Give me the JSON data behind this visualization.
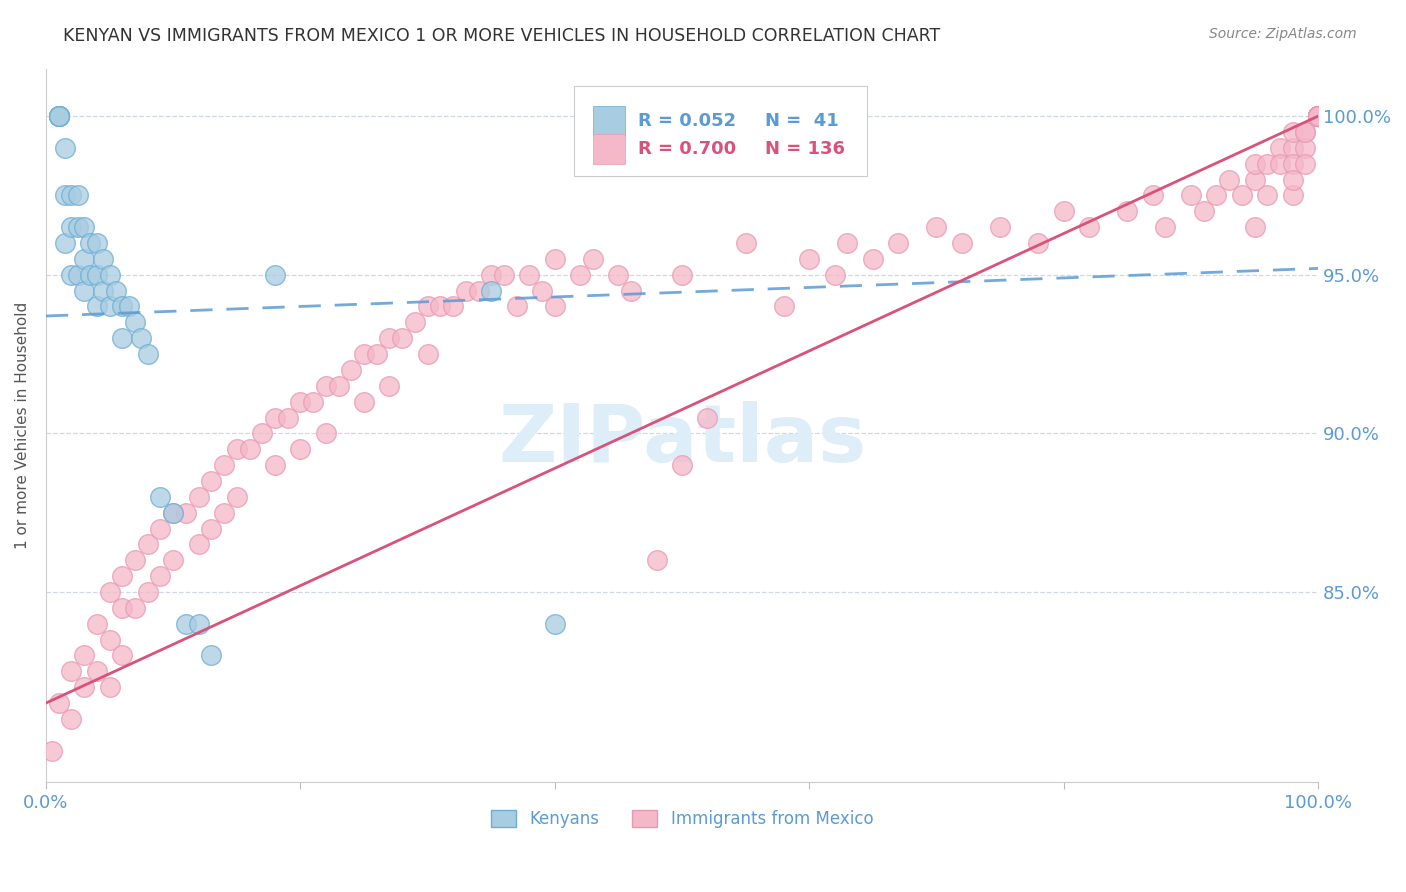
{
  "title": "KENYAN VS IMMIGRANTS FROM MEXICO 1 OR MORE VEHICLES IN HOUSEHOLD CORRELATION CHART",
  "source": "Source: ZipAtlas.com",
  "ylabel": "1 or more Vehicles in Household",
  "xlim": [
    0.0,
    1.0
  ],
  "ylim": [
    0.79,
    1.015
  ],
  "y_ticks": [
    0.85,
    0.9,
    0.95,
    1.0
  ],
  "y_tick_labels": [
    "85.0%",
    "90.0%",
    "95.0%",
    "100.0%"
  ],
  "x_ticks": [
    0.0,
    0.2,
    0.4,
    0.6,
    0.8,
    1.0
  ],
  "x_tick_labels": [
    "0.0%",
    "",
    "",
    "",
    "",
    "100.0%"
  ],
  "legend_R_kenyan": "0.052",
  "legend_N_kenyan": " 41",
  "legend_R_mexico": "0.700",
  "legend_N_mexico": "136",
  "kenyan_color": "#a8cce0",
  "mexico_color": "#f4b8c8",
  "kenyan_edge_color": "#6baed6",
  "mexico_edge_color": "#e899b4",
  "kenyan_trend_color": "#5b9bd5",
  "mexico_trend_color": "#d9527a",
  "axis_color": "#5b9bd5",
  "grid_color": "#d0d8e8",
  "background_color": "#ffffff",
  "watermark_color": "#ddeef8",
  "title_color": "#333333",
  "source_color": "#888888",
  "ylabel_color": "#555555",
  "kenyan_x": [
    0.01,
    0.01,
    0.01,
    0.01,
    0.01,
    0.015,
    0.015,
    0.015,
    0.02,
    0.02,
    0.02,
    0.025,
    0.025,
    0.025,
    0.03,
    0.03,
    0.03,
    0.035,
    0.035,
    0.04,
    0.04,
    0.04,
    0.045,
    0.045,
    0.05,
    0.05,
    0.055,
    0.06,
    0.06,
    0.065,
    0.07,
    0.075,
    0.08,
    0.09,
    0.1,
    0.11,
    0.12,
    0.13,
    0.18,
    0.35,
    0.4
  ],
  "kenyan_y": [
    1.0,
    1.0,
    1.0,
    1.0,
    1.0,
    0.99,
    0.975,
    0.96,
    0.975,
    0.965,
    0.95,
    0.975,
    0.965,
    0.95,
    0.965,
    0.955,
    0.945,
    0.96,
    0.95,
    0.96,
    0.95,
    0.94,
    0.955,
    0.945,
    0.95,
    0.94,
    0.945,
    0.94,
    0.93,
    0.94,
    0.935,
    0.93,
    0.925,
    0.88,
    0.875,
    0.84,
    0.84,
    0.83,
    0.95,
    0.945,
    0.84
  ],
  "mexico_x": [
    0.005,
    0.01,
    0.02,
    0.02,
    0.03,
    0.03,
    0.04,
    0.04,
    0.05,
    0.05,
    0.05,
    0.06,
    0.06,
    0.06,
    0.07,
    0.07,
    0.08,
    0.08,
    0.09,
    0.09,
    0.1,
    0.1,
    0.11,
    0.12,
    0.12,
    0.13,
    0.13,
    0.14,
    0.14,
    0.15,
    0.15,
    0.16,
    0.17,
    0.18,
    0.18,
    0.19,
    0.2,
    0.2,
    0.21,
    0.22,
    0.22,
    0.23,
    0.24,
    0.25,
    0.25,
    0.26,
    0.27,
    0.27,
    0.28,
    0.29,
    0.3,
    0.3,
    0.31,
    0.32,
    0.33,
    0.34,
    0.35,
    0.36,
    0.37,
    0.38,
    0.39,
    0.4,
    0.4,
    0.42,
    0.43,
    0.45,
    0.46,
    0.48,
    0.5,
    0.5,
    0.52,
    0.55,
    0.58,
    0.6,
    0.62,
    0.63,
    0.65,
    0.67,
    0.7,
    0.72,
    0.75,
    0.78,
    0.8,
    0.82,
    0.85,
    0.87,
    0.88,
    0.9,
    0.91,
    0.92,
    0.93,
    0.94,
    0.95,
    0.95,
    0.95,
    0.96,
    0.96,
    0.97,
    0.97,
    0.98,
    0.98,
    0.98,
    0.98,
    0.98,
    0.99,
    0.99,
    0.99,
    0.99,
    1.0,
    1.0,
    1.0,
    1.0,
    1.0,
    1.0,
    1.0,
    1.0,
    1.0,
    1.0,
    1.0,
    1.0,
    1.0,
    1.0,
    1.0,
    1.0,
    1.0,
    1.0,
    1.0,
    1.0,
    1.0,
    1.0,
    1.0,
    1.0,
    1.0,
    1.0,
    1.0,
    1.0
  ],
  "mexico_y": [
    0.8,
    0.815,
    0.825,
    0.81,
    0.83,
    0.82,
    0.84,
    0.825,
    0.85,
    0.835,
    0.82,
    0.855,
    0.845,
    0.83,
    0.86,
    0.845,
    0.865,
    0.85,
    0.87,
    0.855,
    0.875,
    0.86,
    0.875,
    0.88,
    0.865,
    0.885,
    0.87,
    0.89,
    0.875,
    0.895,
    0.88,
    0.895,
    0.9,
    0.905,
    0.89,
    0.905,
    0.91,
    0.895,
    0.91,
    0.915,
    0.9,
    0.915,
    0.92,
    0.925,
    0.91,
    0.925,
    0.93,
    0.915,
    0.93,
    0.935,
    0.94,
    0.925,
    0.94,
    0.94,
    0.945,
    0.945,
    0.95,
    0.95,
    0.94,
    0.95,
    0.945,
    0.955,
    0.94,
    0.95,
    0.955,
    0.95,
    0.945,
    0.86,
    0.89,
    0.95,
    0.905,
    0.96,
    0.94,
    0.955,
    0.95,
    0.96,
    0.955,
    0.96,
    0.965,
    0.96,
    0.965,
    0.96,
    0.97,
    0.965,
    0.97,
    0.975,
    0.965,
    0.975,
    0.97,
    0.975,
    0.98,
    0.975,
    0.98,
    0.965,
    0.985,
    0.985,
    0.975,
    0.99,
    0.985,
    0.99,
    0.985,
    0.975,
    0.995,
    0.98,
    0.995,
    0.99,
    0.985,
    0.995,
    1.0,
    1.0,
    1.0,
    1.0,
    1.0,
    1.0,
    1.0,
    1.0,
    1.0,
    1.0,
    1.0,
    1.0,
    1.0,
    1.0,
    1.0,
    1.0,
    1.0,
    1.0,
    1.0,
    1.0,
    1.0,
    1.0,
    1.0,
    1.0,
    1.0,
    1.0,
    1.0,
    1.0
  ],
  "kenyan_trend_x": [
    0.0,
    1.0
  ],
  "kenyan_trend_y": [
    0.937,
    0.952
  ],
  "mexico_trend_x": [
    0.0,
    1.0
  ],
  "mexico_trend_y": [
    0.815,
    1.0
  ]
}
